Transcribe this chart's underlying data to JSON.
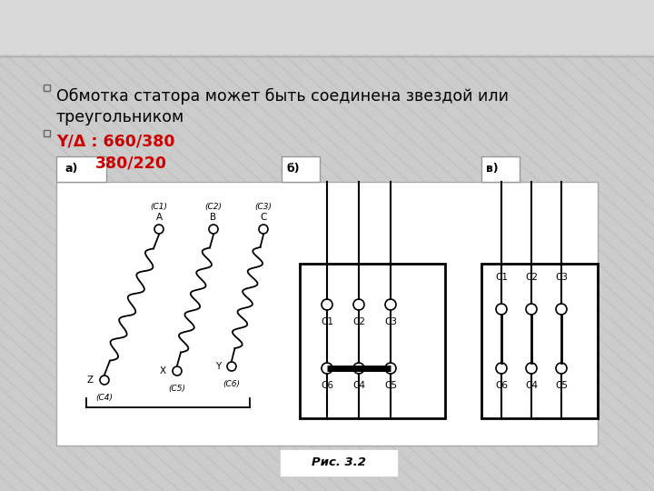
{
  "bg_color": "#c8c8c8",
  "stripe_color": "#b8b8b8",
  "top_band_color": "#d8d8d8",
  "content_bg": "#e0e0e0",
  "white": "#ffffff",
  "bullet1_line1": "Обмотка статора может быть соединена звездой или",
  "bullet1_line2": "треугольником",
  "bullet2": "Y/Δ : 660/380",
  "bullet3": "380/220",
  "red": "#cc0000",
  "black": "#000000",
  "label_a": "а)",
  "label_b": "б)",
  "label_v": "в)",
  "caption": "Рис. 3.2"
}
